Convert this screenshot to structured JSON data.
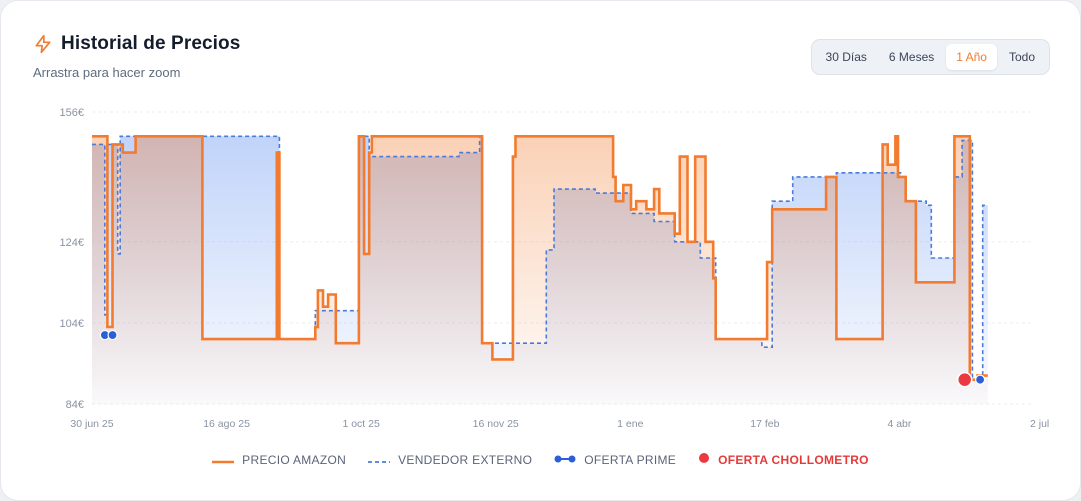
{
  "header": {
    "title": "Historial de Precios",
    "subtitle": "Arrastra para hacer zoom",
    "icon": "lightning-icon"
  },
  "range_buttons": [
    {
      "label": "30 Días",
      "active": false
    },
    {
      "label": "6 Meses",
      "active": false
    },
    {
      "label": "1 Año",
      "active": true
    },
    {
      "label": "Todo",
      "active": false
    }
  ],
  "legend": [
    {
      "label": "PRECIO AMAZON",
      "color": "#f27b2f",
      "style": "solid"
    },
    {
      "label": "VENDEDOR EXTERNO",
      "color": "#4a7bdb",
      "style": "dashed"
    },
    {
      "label": "OFERTA PRIME",
      "color": "#2c5fd6",
      "style": "dot-line"
    },
    {
      "label": "OFERTA CHOLLOMETRO",
      "color": "#ea3a3f",
      "style": "dot"
    }
  ],
  "chart_data": {
    "type": "line",
    "title": "Historial de Precios",
    "x_ticks": [
      "30 jun 25",
      "16 ago 25",
      "1 oct 25",
      "16 nov 25",
      "1 ene",
      "17 feb",
      "4 abr",
      "2 jul"
    ],
    "y_ticks": [
      "156€",
      "124€",
      "104€",
      "84€"
    ],
    "y_tick_values": [
      156,
      124,
      104,
      84
    ],
    "xlim": [
      "2025-06-30",
      "2026-07-02"
    ],
    "ylim": [
      84,
      156
    ],
    "grid": true,
    "legend_position": "bottom",
    "series": [
      {
        "name": "PRECIO AMAZON",
        "color": "#f27b2f",
        "style": "step-solid",
        "points": [
          [
            "2025-06-30",
            150
          ],
          [
            "2025-07-06",
            150
          ],
          [
            "2025-07-06",
            103
          ],
          [
            "2025-07-08",
            103
          ],
          [
            "2025-07-08",
            148
          ],
          [
            "2025-07-12",
            148
          ],
          [
            "2025-07-12",
            146
          ],
          [
            "2025-07-17",
            146
          ],
          [
            "2025-07-17",
            150
          ],
          [
            "2025-08-12",
            150
          ],
          [
            "2025-08-12",
            100
          ],
          [
            "2025-09-10",
            100
          ],
          [
            "2025-09-10",
            146
          ],
          [
            "2025-09-11",
            146
          ],
          [
            "2025-09-11",
            100
          ],
          [
            "2025-09-25",
            100
          ],
          [
            "2025-09-25",
            103
          ],
          [
            "2025-09-26",
            103
          ],
          [
            "2025-09-26",
            112
          ],
          [
            "2025-09-28",
            112
          ],
          [
            "2025-09-28",
            108
          ],
          [
            "2025-09-30",
            108
          ],
          [
            "2025-09-30",
            111
          ],
          [
            "2025-10-03",
            111
          ],
          [
            "2025-10-03",
            99
          ],
          [
            "2025-10-12",
            99
          ],
          [
            "2025-10-12",
            150
          ],
          [
            "2025-10-14",
            150
          ],
          [
            "2025-10-14",
            121
          ],
          [
            "2025-10-16",
            121
          ],
          [
            "2025-10-16",
            146
          ],
          [
            "2025-10-17",
            146
          ],
          [
            "2025-10-17",
            150
          ],
          [
            "2025-11-29",
            150
          ],
          [
            "2025-11-29",
            99
          ],
          [
            "2025-12-03",
            99
          ],
          [
            "2025-12-03",
            95
          ],
          [
            "2025-12-11",
            95
          ],
          [
            "2025-12-11",
            145
          ],
          [
            "2025-12-12",
            145
          ],
          [
            "2025-12-12",
            150
          ],
          [
            "2026-01-19",
            150
          ],
          [
            "2026-01-19",
            140
          ],
          [
            "2026-01-20",
            140
          ],
          [
            "2026-01-20",
            134
          ],
          [
            "2026-01-23",
            134
          ],
          [
            "2026-01-23",
            138
          ],
          [
            "2026-01-26",
            138
          ],
          [
            "2026-01-26",
            132
          ],
          [
            "2026-01-28",
            132
          ],
          [
            "2026-01-28",
            134
          ],
          [
            "2026-02-01",
            134
          ],
          [
            "2026-02-01",
            132
          ],
          [
            "2026-02-04",
            132
          ],
          [
            "2026-02-04",
            137
          ],
          [
            "2026-02-06",
            137
          ],
          [
            "2026-02-06",
            131
          ],
          [
            "2026-02-12",
            131
          ],
          [
            "2026-02-12",
            126
          ],
          [
            "2026-02-14",
            126
          ],
          [
            "2026-02-14",
            145
          ],
          [
            "2026-02-17",
            145
          ],
          [
            "2026-02-17",
            124
          ],
          [
            "2026-02-20",
            124
          ],
          [
            "2026-02-20",
            145
          ],
          [
            "2026-02-24",
            145
          ],
          [
            "2026-02-24",
            124
          ],
          [
            "2026-02-27",
            124
          ],
          [
            "2026-02-27",
            115
          ],
          [
            "2026-02-28",
            115
          ],
          [
            "2026-02-28",
            100
          ],
          [
            "2026-03-20",
            100
          ],
          [
            "2026-03-20",
            119
          ],
          [
            "2026-03-22",
            119
          ],
          [
            "2026-03-22",
            132
          ],
          [
            "2026-04-12",
            132
          ],
          [
            "2026-04-12",
            140
          ],
          [
            "2026-04-16",
            140
          ],
          [
            "2026-04-16",
            100
          ],
          [
            "2026-05-04",
            100
          ],
          [
            "2026-05-04",
            148
          ],
          [
            "2026-05-06",
            148
          ],
          [
            "2026-05-06",
            143
          ],
          [
            "2026-05-09",
            143
          ],
          [
            "2026-05-09",
            150
          ],
          [
            "2026-05-10",
            150
          ],
          [
            "2026-05-10",
            140
          ],
          [
            "2026-05-13",
            140
          ],
          [
            "2026-05-13",
            134
          ],
          [
            "2026-05-17",
            134
          ],
          [
            "2026-05-17",
            114
          ],
          [
            "2026-06-01",
            114
          ],
          [
            "2026-06-01",
            150
          ],
          [
            "2026-06-06",
            150
          ],
          [
            "2026-06-06",
            150
          ],
          [
            "2026-06-07",
            150
          ],
          [
            "2026-06-07",
            90
          ],
          [
            "2026-06-10",
            90
          ],
          [
            "2026-06-10",
            91
          ],
          [
            "2026-06-14",
            91
          ]
        ]
      },
      {
        "name": "VENDEDOR EXTERNO",
        "color": "#4a7bdb",
        "style": "step-dashed",
        "points": [
          [
            "2025-06-30",
            148
          ],
          [
            "2025-07-05",
            148
          ],
          [
            "2025-07-05",
            106
          ],
          [
            "2025-07-06",
            106
          ],
          [
            "2025-07-06",
            148
          ],
          [
            "2025-07-10",
            148
          ],
          [
            "2025-07-10",
            121
          ],
          [
            "2025-07-11",
            121
          ],
          [
            "2025-07-11",
            150
          ],
          [
            "2025-09-11",
            150
          ],
          [
            "2025-09-11",
            100
          ],
          [
            "2025-09-25",
            100
          ],
          [
            "2025-09-25",
            107
          ],
          [
            "2025-10-12",
            107
          ],
          [
            "2025-10-12",
            150
          ],
          [
            "2025-10-16",
            150
          ],
          [
            "2025-10-16",
            145
          ],
          [
            "2025-11-20",
            145
          ],
          [
            "2025-11-20",
            146
          ],
          [
            "2025-11-28",
            146
          ],
          [
            "2025-11-28",
            150
          ],
          [
            "2025-11-29",
            150
          ],
          [
            "2025-11-29",
            99
          ],
          [
            "2025-12-24",
            99
          ],
          [
            "2025-12-24",
            122
          ],
          [
            "2025-12-27",
            122
          ],
          [
            "2025-12-27",
            137
          ],
          [
            "2026-01-12",
            137
          ],
          [
            "2026-01-12",
            136
          ],
          [
            "2026-01-26",
            136
          ],
          [
            "2026-01-26",
            131
          ],
          [
            "2026-02-04",
            131
          ],
          [
            "2026-02-04",
            129
          ],
          [
            "2026-02-12",
            129
          ],
          [
            "2026-02-12",
            124
          ],
          [
            "2026-02-22",
            124
          ],
          [
            "2026-02-22",
            120
          ],
          [
            "2026-02-28",
            120
          ],
          [
            "2026-02-28",
            100
          ],
          [
            "2026-03-18",
            100
          ],
          [
            "2026-03-18",
            98
          ],
          [
            "2026-03-22",
            98
          ],
          [
            "2026-03-22",
            134
          ],
          [
            "2026-03-30",
            134
          ],
          [
            "2026-03-30",
            140
          ],
          [
            "2026-04-16",
            140
          ],
          [
            "2026-04-16",
            141
          ],
          [
            "2026-05-11",
            141
          ],
          [
            "2026-05-11",
            140
          ],
          [
            "2026-05-13",
            140
          ],
          [
            "2026-05-13",
            134
          ],
          [
            "2026-05-21",
            134
          ],
          [
            "2026-05-21",
            133
          ],
          [
            "2026-05-23",
            133
          ],
          [
            "2026-05-23",
            120
          ],
          [
            "2026-06-01",
            120
          ],
          [
            "2026-06-01",
            140
          ],
          [
            "2026-06-04",
            140
          ],
          [
            "2026-06-04",
            149
          ],
          [
            "2026-06-08",
            149
          ],
          [
            "2026-06-08",
            90
          ],
          [
            "2026-06-12",
            90
          ],
          [
            "2026-06-12",
            133
          ],
          [
            "2026-06-14",
            133
          ]
        ]
      }
    ],
    "prime_offers": [
      {
        "date": "2025-07-05",
        "price": 101
      },
      {
        "date": "2025-07-08",
        "price": 101
      },
      {
        "date": "2026-06-11",
        "price": 90
      }
    ],
    "chollometro_offers": [
      {
        "date": "2026-06-05",
        "price": 90
      }
    ]
  }
}
